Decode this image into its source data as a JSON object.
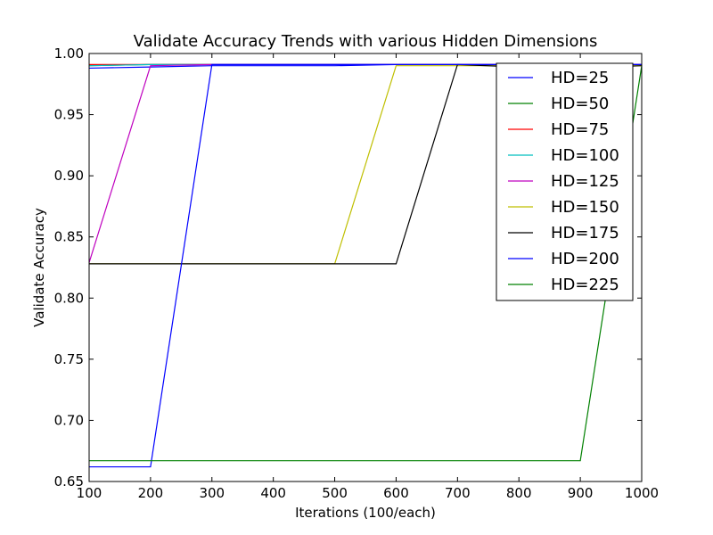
{
  "chart_data": {
    "type": "line",
    "title": "Validate Accuracy Trends with various Hidden Dimensions",
    "xlabel": "Iterations (100/each)",
    "ylabel": "Validate Accuracy",
    "xlim": [
      100,
      1000
    ],
    "ylim": [
      0.65,
      1.0
    ],
    "xticks": [
      100,
      200,
      300,
      400,
      500,
      600,
      700,
      800,
      900,
      1000
    ],
    "yticks": [
      0.65,
      0.7,
      0.75,
      0.8,
      0.85,
      0.9,
      0.95,
      1.0
    ],
    "xtick_labels": [
      "100",
      "200",
      "300",
      "400",
      "500",
      "600",
      "700",
      "800",
      "900",
      "1000"
    ],
    "ytick_labels": [
      "0.65",
      "0.70",
      "0.75",
      "0.80",
      "0.85",
      "0.90",
      "0.95",
      "1.00"
    ],
    "grid": false,
    "legend_position": "top-right",
    "x": [
      100,
      200,
      300,
      400,
      500,
      600,
      700,
      800,
      900,
      1000
    ],
    "series": [
      {
        "name": "HD=25",
        "color": "#0000ff",
        "values": [
          0.988,
          0.989,
          0.99,
          0.99,
          0.99,
          0.991,
          0.991,
          0.991,
          0.991,
          0.991
        ]
      },
      {
        "name": "HD=50",
        "color": "#008000",
        "values": [
          0.99,
          0.991,
          0.991,
          0.991,
          0.991,
          0.991,
          0.991,
          0.991,
          0.991,
          0.991
        ]
      },
      {
        "name": "HD=75",
        "color": "#ff0000",
        "values": [
          0.991,
          0.991,
          0.991,
          0.991,
          0.991,
          0.991,
          0.991,
          0.991,
          0.991,
          0.991
        ]
      },
      {
        "name": "HD=100",
        "color": "#00bfbf",
        "values": [
          0.99,
          0.991,
          0.991,
          0.991,
          0.991,
          0.991,
          0.991,
          0.991,
          0.991,
          0.991
        ]
      },
      {
        "name": "HD=125",
        "color": "#bf00bf",
        "values": [
          0.829,
          0.99,
          0.991,
          0.991,
          0.991,
          0.991,
          0.991,
          0.991,
          0.991,
          0.991
        ]
      },
      {
        "name": "HD=150",
        "color": "#bfbf00",
        "values": [
          0.828,
          0.828,
          0.828,
          0.828,
          0.828,
          0.99,
          0.99,
          0.99,
          0.99,
          0.99
        ]
      },
      {
        "name": "HD=175",
        "color": "#000000",
        "values": [
          0.828,
          0.828,
          0.828,
          0.828,
          0.828,
          0.828,
          0.991,
          0.989,
          0.988,
          0.99
        ]
      },
      {
        "name": "HD=200",
        "color": "#0000ff",
        "values": [
          0.662,
          0.662,
          0.991,
          0.991,
          0.991,
          0.991,
          0.991,
          0.991,
          0.991,
          0.991
        ]
      },
      {
        "name": "HD=225",
        "color": "#008000",
        "values": [
          0.667,
          0.667,
          0.667,
          0.667,
          0.667,
          0.667,
          0.667,
          0.667,
          0.667,
          0.99
        ]
      }
    ]
  }
}
